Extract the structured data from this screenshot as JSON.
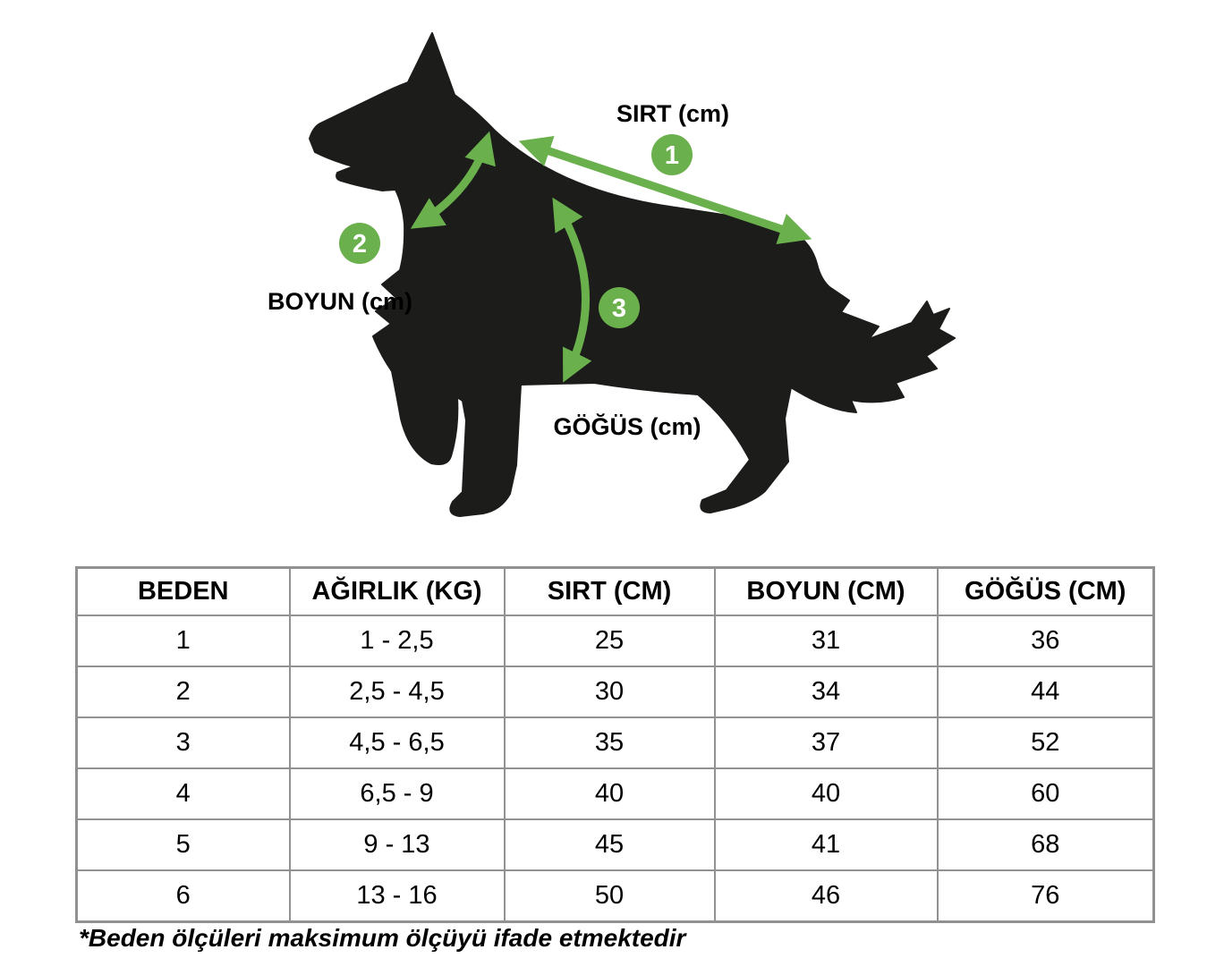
{
  "page": {
    "background": "#ffffff"
  },
  "diagram": {
    "accent_green": "#6ab04c",
    "silhouette_color": "#1c1c1a",
    "measurements": [
      {
        "num": "1",
        "label": "SIRT (cm)"
      },
      {
        "num": "2",
        "label": "BOYUN (cm)"
      },
      {
        "num": "3",
        "label": "GÖĞÜS (cm)"
      }
    ]
  },
  "table": {
    "headers": [
      "BEDEN",
      "AĞIRLIK (KG)",
      "SIRT (CM)",
      "BOYUN (CM)",
      "GÖĞÜS (CM)"
    ],
    "rows": [
      [
        "1",
        "1 - 2,5",
        "25",
        "31",
        "36"
      ],
      [
        "2",
        "2,5 - 4,5",
        "30",
        "34",
        "44"
      ],
      [
        "3",
        "4,5 - 6,5",
        "35",
        "37",
        "52"
      ],
      [
        "4",
        "6,5 - 9",
        "40",
        "40",
        "60"
      ],
      [
        "5",
        "9 - 13",
        "45",
        "41",
        "68"
      ],
      [
        "6",
        "13 - 16",
        "50",
        "46",
        "76"
      ]
    ]
  },
  "footnote": "*Beden ölçüleri maksimum ölçüyü ifade etmektedir"
}
